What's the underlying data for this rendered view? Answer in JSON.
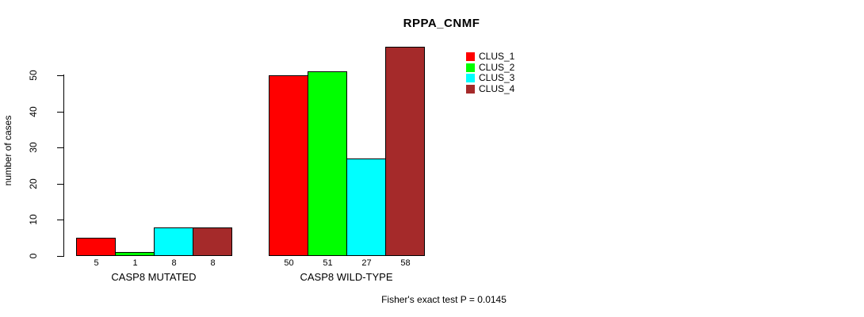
{
  "chart_data": {
    "type": "bar",
    "title": "RPPA_CNMF",
    "ylabel": "number of cases",
    "xlabel": "",
    "footnote": "Fisher's exact test P = 0.0145",
    "groups": [
      {
        "label": "CASP8 MUTATED",
        "values": [
          5,
          1,
          8,
          8
        ]
      },
      {
        "label": "CASP8 WILD-TYPE",
        "values": [
          50,
          51,
          27,
          58
        ]
      }
    ],
    "series": [
      {
        "name": "CLUS_1",
        "color": "#FF0000"
      },
      {
        "name": "CLUS_2",
        "color": "#00FF00"
      },
      {
        "name": "CLUS_3",
        "color": "#00FFFF"
      },
      {
        "name": "CLUS_4",
        "color": "#A52A2A"
      }
    ],
    "y_ticks": [
      0,
      10,
      20,
      30,
      40,
      50
    ],
    "ylim": [
      0,
      58
    ],
    "bar_value_labels_shown": true,
    "legend_position": "top-right",
    "grid": false,
    "axis_color": "#000000",
    "text_color": "#000000",
    "background_color": "#FFFFFF"
  }
}
